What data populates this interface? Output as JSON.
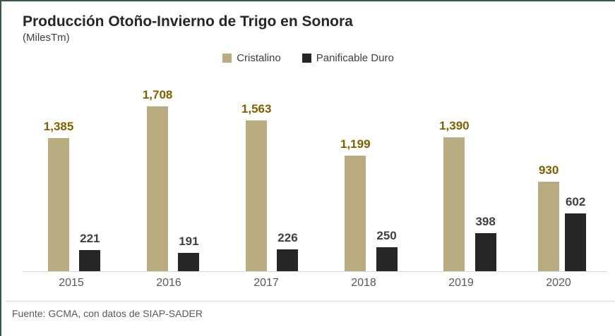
{
  "header": {
    "title": "Producción Otoño-Invierno de Trigo en Sonora",
    "subtitle": "(MilesTm)"
  },
  "chart_data": {
    "type": "bar",
    "title": "Producción Otoño-Invierno de Trigo en Sonora",
    "unit_label": "(MilesTm)",
    "categories": [
      "2015",
      "2016",
      "2017",
      "2018",
      "2019",
      "2020"
    ],
    "series": [
      {
        "name": "Cristalino",
        "color": "#b9ac81",
        "label_color": "#7f6000",
        "values": [
          1385,
          1708,
          1563,
          1199,
          1390,
          930
        ],
        "value_labels": [
          "1,385",
          "1,708",
          "1,563",
          "1,199",
          "1,390",
          "930"
        ]
      },
      {
        "name": "Panificable Duro",
        "color": "#262626",
        "label_color": "#3f3f3f",
        "values": [
          221,
          191,
          226,
          250,
          398,
          602
        ],
        "value_labels": [
          "221",
          "191",
          "226",
          "250",
          "398",
          "602"
        ]
      }
    ],
    "ylim": [
      0,
      1800
    ],
    "grid": false,
    "legend_position": "top-center",
    "axis_line_color": "#d9d9d9"
  },
  "footer": {
    "source": "Fuente: GCMA, con datos de SIAP-SADER"
  },
  "colors": {
    "frame_border": "#3a5741",
    "title_text": "#262626",
    "axis_text": "#595959",
    "background": "#ffffff"
  }
}
